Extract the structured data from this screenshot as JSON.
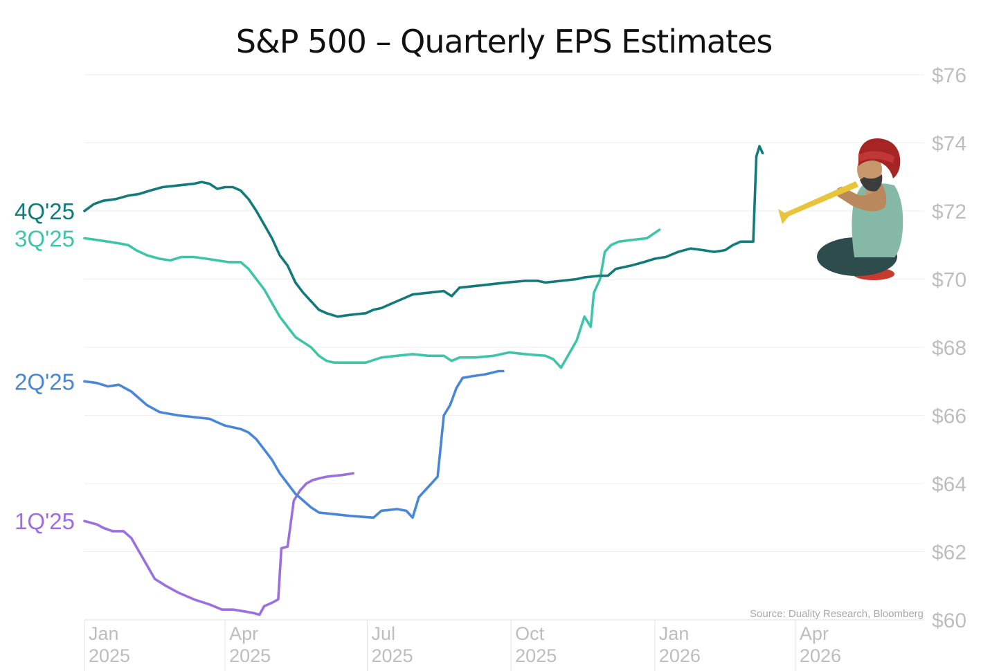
{
  "chart_data": {
    "type": "line",
    "title": "S&P 500 – Quarterly EPS Estimates",
    "source": "Source: Duality Research, Bloomberg",
    "ylabel": "",
    "xlabel": "",
    "ylim": [
      60,
      76
    ],
    "y_ticks": [
      "$60",
      "$62",
      "$64",
      "$66",
      "$68",
      "$70",
      "$72",
      "$74",
      "$76"
    ],
    "x_ticks": [
      {
        "month": "Jan",
        "year": "2025",
        "date": "2025-01-01"
      },
      {
        "month": "Apr",
        "year": "2025",
        "date": "2025-04-01"
      },
      {
        "month": "Jul",
        "year": "2025",
        "date": "2025-07-01"
      },
      {
        "month": "Oct",
        "year": "2025",
        "date": "2025-10-01"
      },
      {
        "month": "Jan",
        "year": "2026",
        "date": "2026-01-01"
      },
      {
        "month": "Apr",
        "year": "2026",
        "date": "2026-04-01"
      }
    ],
    "x_axis_note": "x values are days since 2025-01-01",
    "series": [
      {
        "name": "1Q'25",
        "color": "#9b6fe0",
        "points": [
          [
            0,
            62.9
          ],
          [
            8,
            62.8
          ],
          [
            12,
            62.7
          ],
          [
            18,
            62.6
          ],
          [
            25,
            62.6
          ],
          [
            30,
            62.4
          ],
          [
            35,
            62.0
          ],
          [
            40,
            61.6
          ],
          [
            45,
            61.2
          ],
          [
            52,
            61.0
          ],
          [
            60,
            60.8
          ],
          [
            70,
            60.6
          ],
          [
            80,
            60.45
          ],
          [
            88,
            60.3
          ],
          [
            95,
            60.3
          ],
          [
            102,
            60.25
          ],
          [
            108,
            60.2
          ],
          [
            112,
            60.15
          ],
          [
            115,
            60.4
          ],
          [
            120,
            60.5
          ],
          [
            124,
            60.6
          ],
          [
            126,
            62.1
          ],
          [
            130,
            62.15
          ],
          [
            134,
            63.5
          ],
          [
            138,
            63.8
          ],
          [
            142,
            64.0
          ],
          [
            146,
            64.1
          ],
          [
            150,
            64.15
          ],
          [
            155,
            64.2
          ],
          [
            165,
            64.25
          ],
          [
            172,
            64.3
          ]
        ]
      },
      {
        "name": "2Q'25",
        "color": "#4a86d8",
        "points": [
          [
            0,
            67.0
          ],
          [
            8,
            66.95
          ],
          [
            15,
            66.85
          ],
          [
            22,
            66.9
          ],
          [
            30,
            66.7
          ],
          [
            35,
            66.5
          ],
          [
            40,
            66.3
          ],
          [
            48,
            66.1
          ],
          [
            60,
            66.0
          ],
          [
            70,
            65.95
          ],
          [
            80,
            65.9
          ],
          [
            85,
            65.8
          ],
          [
            90,
            65.7
          ],
          [
            100,
            65.6
          ],
          [
            105,
            65.5
          ],
          [
            110,
            65.3
          ],
          [
            115,
            65.0
          ],
          [
            120,
            64.7
          ],
          [
            125,
            64.3
          ],
          [
            130,
            64.0
          ],
          [
            135,
            63.7
          ],
          [
            140,
            63.5
          ],
          [
            145,
            63.3
          ],
          [
            150,
            63.15
          ],
          [
            160,
            63.1
          ],
          [
            170,
            63.05
          ],
          [
            185,
            63.0
          ],
          [
            190,
            63.2
          ],
          [
            200,
            63.25
          ],
          [
            206,
            63.2
          ],
          [
            210,
            63.0
          ],
          [
            214,
            63.6
          ],
          [
            218,
            63.8
          ],
          [
            222,
            64.0
          ],
          [
            226,
            64.2
          ],
          [
            230,
            66.0
          ],
          [
            234,
            66.3
          ],
          [
            238,
            66.8
          ],
          [
            242,
            67.1
          ],
          [
            248,
            67.15
          ],
          [
            256,
            67.2
          ],
          [
            265,
            67.3
          ],
          [
            268,
            67.3
          ]
        ]
      },
      {
        "name": "3Q'25",
        "color": "#3ec4a8",
        "points": [
          [
            0,
            71.2
          ],
          [
            8,
            71.15
          ],
          [
            15,
            71.1
          ],
          [
            22,
            71.05
          ],
          [
            28,
            71.0
          ],
          [
            33,
            70.85
          ],
          [
            40,
            70.7
          ],
          [
            48,
            70.6
          ],
          [
            55,
            70.55
          ],
          [
            62,
            70.65
          ],
          [
            70,
            70.65
          ],
          [
            78,
            70.6
          ],
          [
            85,
            70.55
          ],
          [
            92,
            70.5
          ],
          [
            100,
            70.5
          ],
          [
            105,
            70.3
          ],
          [
            110,
            70.0
          ],
          [
            115,
            69.7
          ],
          [
            120,
            69.3
          ],
          [
            125,
            68.9
          ],
          [
            130,
            68.6
          ],
          [
            135,
            68.3
          ],
          [
            140,
            68.15
          ],
          [
            145,
            68.0
          ],
          [
            150,
            67.75
          ],
          [
            155,
            67.6
          ],
          [
            160,
            67.55
          ],
          [
            170,
            67.55
          ],
          [
            180,
            67.55
          ],
          [
            190,
            67.7
          ],
          [
            200,
            67.75
          ],
          [
            210,
            67.8
          ],
          [
            220,
            67.75
          ],
          [
            230,
            67.75
          ],
          [
            235,
            67.6
          ],
          [
            240,
            67.7
          ],
          [
            250,
            67.7
          ],
          [
            262,
            67.75
          ],
          [
            272,
            67.85
          ],
          [
            282,
            67.8
          ],
          [
            295,
            67.75
          ],
          [
            300,
            67.65
          ],
          [
            305,
            67.4
          ],
          [
            310,
            67.8
          ],
          [
            315,
            68.2
          ],
          [
            320,
            68.9
          ],
          [
            324,
            68.6
          ],
          [
            326,
            69.6
          ],
          [
            328,
            69.8
          ],
          [
            330,
            70.0
          ],
          [
            333,
            70.8
          ],
          [
            337,
            71.0
          ],
          [
            342,
            71.1
          ],
          [
            350,
            71.15
          ],
          [
            360,
            71.2
          ],
          [
            368,
            71.45
          ]
        ]
      },
      {
        "name": "4Q'25",
        "color": "#127a7a",
        "points": [
          [
            0,
            72.0
          ],
          [
            6,
            72.2
          ],
          [
            12,
            72.3
          ],
          [
            20,
            72.35
          ],
          [
            28,
            72.45
          ],
          [
            35,
            72.5
          ],
          [
            42,
            72.6
          ],
          [
            50,
            72.7
          ],
          [
            60,
            72.75
          ],
          [
            70,
            72.8
          ],
          [
            75,
            72.85
          ],
          [
            80,
            72.8
          ],
          [
            85,
            72.65
          ],
          [
            90,
            72.7
          ],
          [
            95,
            72.7
          ],
          [
            100,
            72.6
          ],
          [
            105,
            72.35
          ],
          [
            110,
            72.0
          ],
          [
            115,
            71.6
          ],
          [
            120,
            71.2
          ],
          [
            125,
            70.7
          ],
          [
            130,
            70.4
          ],
          [
            135,
            69.9
          ],
          [
            140,
            69.6
          ],
          [
            145,
            69.35
          ],
          [
            150,
            69.1
          ],
          [
            155,
            69.0
          ],
          [
            162,
            68.9
          ],
          [
            170,
            68.95
          ],
          [
            180,
            69.0
          ],
          [
            185,
            69.1
          ],
          [
            190,
            69.15
          ],
          [
            195,
            69.25
          ],
          [
            200,
            69.35
          ],
          [
            205,
            69.45
          ],
          [
            210,
            69.55
          ],
          [
            220,
            69.6
          ],
          [
            230,
            69.65
          ],
          [
            235,
            69.5
          ],
          [
            240,
            69.75
          ],
          [
            250,
            69.8
          ],
          [
            260,
            69.85
          ],
          [
            270,
            69.9
          ],
          [
            282,
            69.95
          ],
          [
            290,
            69.95
          ],
          [
            295,
            69.9
          ],
          [
            305,
            69.95
          ],
          [
            315,
            70.0
          ],
          [
            320,
            70.05
          ],
          [
            330,
            70.1
          ],
          [
            335,
            70.1
          ],
          [
            340,
            70.3
          ],
          [
            345,
            70.35
          ],
          [
            350,
            70.4
          ],
          [
            358,
            70.5
          ],
          [
            365,
            70.6
          ],
          [
            372,
            70.65
          ],
          [
            380,
            70.8
          ],
          [
            388,
            70.9
          ],
          [
            396,
            70.85
          ],
          [
            403,
            70.8
          ],
          [
            410,
            70.85
          ],
          [
            415,
            71.0
          ],
          [
            420,
            71.1
          ],
          [
            428,
            71.1
          ],
          [
            430,
            73.6
          ],
          [
            432,
            73.9
          ],
          [
            434,
            73.7
          ]
        ]
      }
    ]
  }
}
